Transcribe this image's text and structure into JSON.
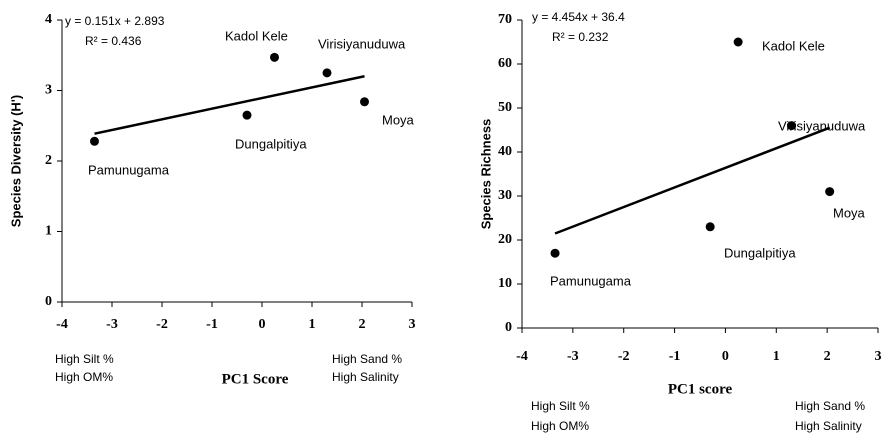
{
  "chart_data": [
    {
      "type": "scatter",
      "y_label": "Species Diversity (H')",
      "x_label": "PC1 Score",
      "left_notes": [
        "High Silt %",
        "High OM%"
      ],
      "right_notes": [
        "High Sand %",
        "High Salinity"
      ],
      "equation": "y = 0.151x + 2.893",
      "r_squared": "R² = 0.436",
      "slope": 0.151,
      "intercept": 2.893,
      "labels": [
        "Pamunugama",
        "Dungalpitiya",
        "Kadol Kele",
        "Virisiyanuduwa",
        "Moya"
      ],
      "x": [
        -3.35,
        -0.3,
        0.25,
        1.3,
        2.05
      ],
      "values": [
        2.28,
        2.65,
        3.47,
        3.25,
        2.84
      ],
      "color": "#000000",
      "xlim": [
        -4,
        3
      ],
      "xticks": [
        -4,
        -3,
        -2,
        -1,
        0,
        1,
        2,
        3
      ],
      "ylim": [
        0,
        4
      ],
      "yticks": [
        0,
        1,
        2,
        3,
        4
      ]
    },
    {
      "type": "scatter",
      "y_label": "Species Richness",
      "x_label": "PC1  score",
      "left_notes": [
        "High Silt %",
        "High OM%"
      ],
      "right_notes": [
        "High Sand %",
        "High Salinity"
      ],
      "equation": "y = 4.454x + 36.4",
      "r_squared": "R² = 0.232",
      "slope": 4.454,
      "intercept": 36.4,
      "labels": [
        "Pamunugama",
        "Dungalpitiya",
        "Kadol Kele",
        "Virisiyanuduwa",
        "Moya"
      ],
      "x": [
        -3.35,
        -0.3,
        0.25,
        1.3,
        2.05
      ],
      "values": [
        17,
        23,
        65,
        46,
        31
      ],
      "color": "#000000",
      "xlim": [
        -4,
        3
      ],
      "xticks": [
        -4,
        -3,
        -2,
        -1,
        0,
        1,
        2,
        3
      ],
      "ylim": [
        0,
        70
      ],
      "yticks": [
        0,
        10,
        20,
        30,
        40,
        50,
        60,
        70
      ]
    }
  ]
}
